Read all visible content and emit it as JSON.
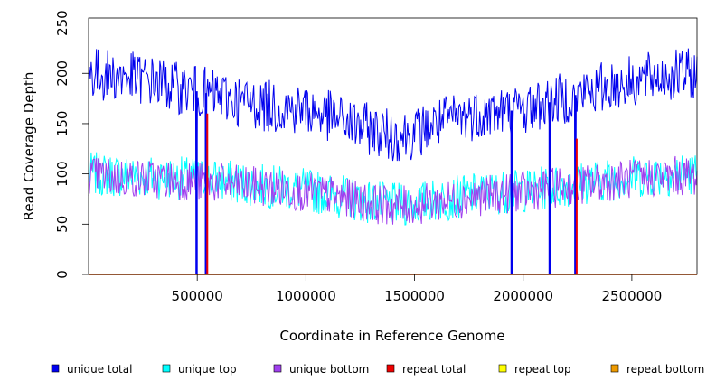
{
  "chart_data": {
    "type": "line",
    "title": "",
    "xlabel": "Coordinate in Reference Genome",
    "ylabel": "Read Coverage Depth",
    "xlim": [
      0,
      2800000
    ],
    "ylim": [
      0,
      255
    ],
    "x_ticks": [
      500000,
      1000000,
      1500000,
      2000000,
      2500000
    ],
    "x_tick_labels": [
      "500000",
      "1000000",
      "1500000",
      "2000000",
      "2500000"
    ],
    "y_ticks": [
      0,
      50,
      100,
      150,
      200,
      250
    ],
    "y_tick_labels": [
      "0",
      "50",
      "100",
      "150",
      "200",
      "250"
    ],
    "legend_position": "bottom",
    "x": [
      0,
      100000,
      200000,
      300000,
      400000,
      500000,
      600000,
      700000,
      800000,
      900000,
      1000000,
      1100000,
      1200000,
      1300000,
      1400000,
      1500000,
      1600000,
      1700000,
      1800000,
      1900000,
      2000000,
      2100000,
      2200000,
      2300000,
      2400000,
      2500000,
      2600000,
      2700000,
      2800000
    ],
    "series": [
      {
        "name": "unique total",
        "color": "#0000ee",
        "values": [
          200,
          198,
          196,
          192,
          186,
          182,
          178,
          172,
          168,
          166,
          164,
          158,
          150,
          144,
          138,
          140,
          150,
          156,
          160,
          162,
          164,
          170,
          176,
          182,
          188,
          192,
          196,
          198,
          200
        ]
      },
      {
        "name": "unique top",
        "color": "#00ffff",
        "values": [
          100,
          99,
          98,
          97,
          96,
          95,
          93,
          91,
          88,
          86,
          84,
          80,
          76,
          72,
          69,
          70,
          74,
          77,
          80,
          82,
          83,
          86,
          89,
          92,
          95,
          97,
          99,
          100,
          100
        ]
      },
      {
        "name": "unique bottom",
        "color": "#a040ee",
        "values": [
          98,
          97,
          96,
          95,
          94,
          92,
          91,
          89,
          87,
          85,
          82,
          79,
          75,
          71,
          68,
          69,
          72,
          75,
          78,
          80,
          82,
          85,
          88,
          90,
          93,
          95,
          97,
          98,
          98
        ]
      },
      {
        "name": "repeat total",
        "color": "#ee0000",
        "values": [
          0,
          0,
          0,
          0,
          0,
          0,
          0,
          0,
          0,
          0,
          0,
          0,
          0,
          0,
          0,
          0,
          0,
          0,
          0,
          0,
          0,
          0,
          0,
          0,
          0,
          0,
          0,
          0,
          0
        ]
      },
      {
        "name": "repeat top",
        "color": "#ffff00",
        "values": [
          0,
          0,
          0,
          0,
          0,
          0,
          0,
          0,
          0,
          0,
          0,
          0,
          0,
          0,
          0,
          0,
          0,
          0,
          0,
          0,
          0,
          0,
          0,
          0,
          0,
          0,
          0,
          0,
          0
        ]
      },
      {
        "name": "repeat bottom",
        "color": "#ee9a00",
        "values": [
          0,
          0,
          0,
          0,
          0,
          0,
          0,
          0,
          0,
          0,
          0,
          0,
          0,
          0,
          0,
          0,
          0,
          0,
          0,
          0,
          0,
          0,
          0,
          0,
          0,
          0,
          0,
          0,
          0
        ]
      }
    ],
    "coverage_drops": [
      {
        "x": 497000,
        "series": "unique total"
      },
      {
        "x": 540000,
        "series": "unique total"
      },
      {
        "x": 1947000,
        "series": "unique total"
      },
      {
        "x": 2122000,
        "series": "unique total"
      },
      {
        "x": 2240000,
        "series": "unique total"
      }
    ],
    "repeat_spikes": [
      {
        "x": 540000,
        "value": 160,
        "series": "repeat total"
      },
      {
        "x": 2240000,
        "value": 135,
        "series": "repeat total"
      }
    ]
  }
}
